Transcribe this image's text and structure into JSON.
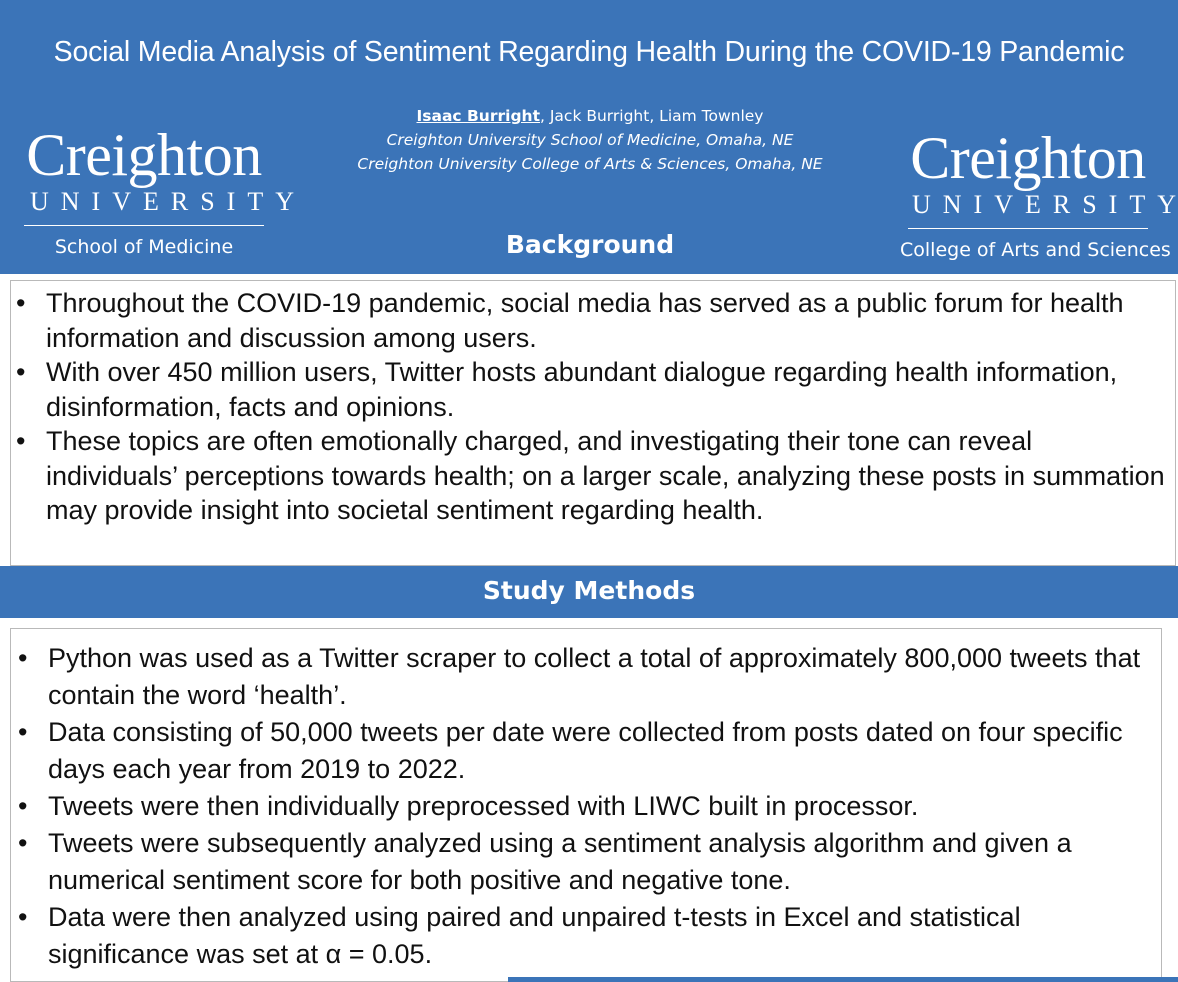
{
  "header": {
    "title": "Social Media Analysis of Sentiment Regarding Health During the COVID-19 Pandemic",
    "lead_author": "Isaac Burright",
    "other_authors": ", Jack Burright, Liam Townley",
    "affiliation_1": "Creighton University School of Medicine, Omaha, NE",
    "affiliation_2": "Creighton University College of Arts & Sciences, Omaha, NE",
    "background_color": "#3b74b8"
  },
  "logos": {
    "left": {
      "wordmark": "Creighton",
      "university": "UNIVERSITY",
      "school": "School of Medicine"
    },
    "right": {
      "wordmark": "Creighton",
      "university": "UNIVERSITY",
      "school": "College of Arts and Sciences"
    }
  },
  "background": {
    "heading": "Background",
    "bullets": [
      "Throughout the COVID-19 pandemic, social media has served as a public forum for health information and discussion among users.",
      "With over 450 million users, Twitter hosts abundant dialogue regarding health information, disinformation, facts and opinions.",
      "These topics are often emotionally charged, and investigating their tone can reveal individuals’ perceptions towards health; on a larger scale, analyzing these posts in summation may provide insight into societal sentiment regarding health."
    ]
  },
  "methods": {
    "heading": "Study Methods",
    "bullets": [
      "Python was used as a Twitter scraper to collect a total of approximately 800,000 tweets that contain the word ‘health’.",
      "Data consisting of 50,000 tweets per date were collected from posts dated on four specific days each year from 2019 to 2022.",
      "Tweets were then individually preprocessed with LIWC built in processor.",
      "Tweets were subsequently analyzed using a sentiment analysis algorithm and given a numerical sentiment score for both positive and negative tone.",
      "Data were then analyzed using paired and unpaired t-tests in Excel and statistical significance was set at α = 0.05."
    ]
  }
}
